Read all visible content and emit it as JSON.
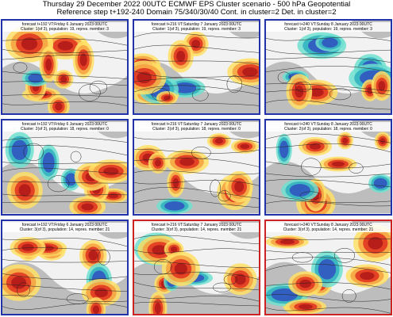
{
  "header": {
    "title": "Thursday 29 December 2022 00UTC ECMWF EPS Cluster scenario - 500 hPa Geopotential",
    "subtitle": "Reference step t+192-240 Domain 75/340/30/40 Cont. in cluster=2 Det. in cluster=2"
  },
  "panels": [
    {
      "forecast": "forecast t+192 VT:Friday 6 January 2023 00UTC",
      "cluster": "Cluster: 1(of 3), population: 19, repres. member: 3",
      "border_color": "#2233aa"
    },
    {
      "forecast": "forecast t+216 VT:Saturday 7 January 2023 00UTC",
      "cluster": "Cluster: 1(of 3), population: 19, repres. member: 3",
      "border_color": "#2233aa"
    },
    {
      "forecast": "forecast t+240 VT:Sunday 8 January 2023 00UTC",
      "cluster": "Cluster: 1(of 3), population: 19, repres. member: 3",
      "border_color": "#2233aa"
    },
    {
      "forecast": "forecast t+192 VT:Friday 6 January 2023 00UTC",
      "cluster": "Cluster: 2(of 3), population: 18, repres. member: 0",
      "border_color": "#2233aa"
    },
    {
      "forecast": "forecast t+216 VT:Saturday 7 January 2023 00UTC",
      "cluster": "Cluster: 2(of 3), population: 18, repres. member: 0",
      "border_color": "#2233aa"
    },
    {
      "forecast": "forecast t+240 VT:Sunday 8 January 2023 00UTC",
      "cluster": "Cluster: 2(of 3), population: 18, repres. member: 0",
      "border_color": "#2233aa"
    },
    {
      "forecast": "forecast t+192 VT:Friday 6 January 2023 00UTC",
      "cluster": "Cluster: 3(of 3), population: 14, repres. member: 21",
      "border_color": "#2233aa"
    },
    {
      "forecast": "forecast t+216 VT:Saturday 7 January 2023 00UTC",
      "cluster": "Cluster: 3(of 3), population: 14, repres. member: 21",
      "border_color": "#cc2222"
    },
    {
      "forecast": "forecast t+240 VT:Sunday 8 January 2023 00UTC",
      "cluster": "Cluster: 3(of 3), population: 14, repres. member: 21",
      "border_color": "#cc2222"
    }
  ]
}
